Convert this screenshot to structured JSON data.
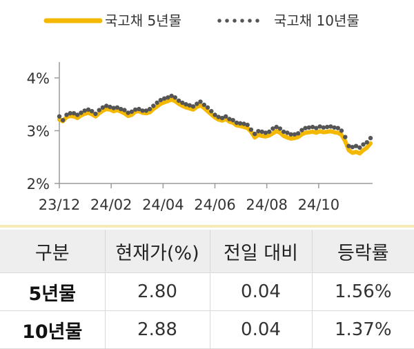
{
  "chart_data": {
    "type": "line",
    "x_ticks": [
      "23/12",
      "24/02",
      "24/04",
      "24/06",
      "24/08",
      "24/10"
    ],
    "y_ticks": [
      "2%",
      "3%",
      "4%"
    ],
    "ylim": [
      2,
      4.3
    ],
    "x_range": [
      "2023-12",
      "2024-11"
    ],
    "legend_position": "top",
    "grid": false,
    "series": [
      {
        "name": "국고채 5년물",
        "style": "solid",
        "color": "#f5b800",
        "values": [
          3.21,
          3.18,
          3.26,
          3.28,
          3.27,
          3.24,
          3.29,
          3.32,
          3.34,
          3.31,
          3.27,
          3.33,
          3.38,
          3.41,
          3.4,
          3.37,
          3.39,
          3.36,
          3.33,
          3.28,
          3.3,
          3.36,
          3.37,
          3.34,
          3.33,
          3.35,
          3.41,
          3.46,
          3.51,
          3.54,
          3.56,
          3.59,
          3.56,
          3.51,
          3.47,
          3.44,
          3.42,
          3.4,
          3.45,
          3.48,
          3.43,
          3.37,
          3.31,
          3.25,
          3.21,
          3.19,
          3.22,
          3.17,
          3.15,
          3.1,
          3.09,
          3.07,
          3.05,
          2.98,
          2.87,
          2.92,
          2.9,
          2.89,
          2.91,
          2.95,
          2.99,
          2.96,
          2.9,
          2.87,
          2.85,
          2.86,
          2.88,
          2.93,
          2.96,
          2.97,
          2.98,
          2.96,
          2.99,
          2.97,
          2.98,
          2.99,
          2.97,
          2.96,
          2.92,
          2.8,
          2.63,
          2.58,
          2.6,
          2.57,
          2.63,
          2.68,
          2.76
        ]
      },
      {
        "name": "국고채 10년물",
        "style": "dotted",
        "color": "#555555",
        "values": [
          3.27,
          3.2,
          3.3,
          3.33,
          3.33,
          3.3,
          3.34,
          3.38,
          3.4,
          3.37,
          3.32,
          3.39,
          3.44,
          3.47,
          3.45,
          3.43,
          3.44,
          3.41,
          3.39,
          3.34,
          3.36,
          3.4,
          3.41,
          3.38,
          3.38,
          3.41,
          3.47,
          3.53,
          3.58,
          3.61,
          3.63,
          3.66,
          3.63,
          3.57,
          3.53,
          3.5,
          3.48,
          3.46,
          3.51,
          3.55,
          3.49,
          3.44,
          3.37,
          3.3,
          3.26,
          3.24,
          3.27,
          3.22,
          3.2,
          3.15,
          3.14,
          3.13,
          3.11,
          3.02,
          2.94,
          2.99,
          2.98,
          2.96,
          2.98,
          3.04,
          3.07,
          3.04,
          2.98,
          2.96,
          2.93,
          2.93,
          2.95,
          3.01,
          3.05,
          3.06,
          3.07,
          3.05,
          3.08,
          3.06,
          3.07,
          3.08,
          3.06,
          3.05,
          3.0,
          2.88,
          2.71,
          2.69,
          2.71,
          2.68,
          2.74,
          2.78,
          2.86
        ]
      }
    ]
  },
  "table": {
    "headers": [
      "구분",
      "현재가(%)",
      "전일 대비",
      "등락률"
    ],
    "rows": [
      {
        "name": "5년물",
        "price": "2.80",
        "change": "0.04",
        "rate": "1.56%"
      },
      {
        "name": "10년물",
        "price": "2.88",
        "change": "0.04",
        "rate": "1.37%"
      }
    ]
  }
}
